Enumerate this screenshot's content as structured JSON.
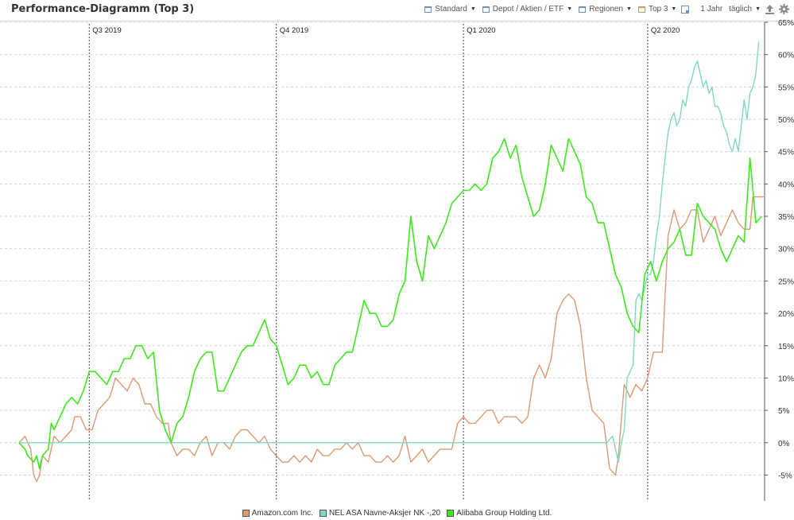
{
  "header": {
    "title": "Performance-Diagramm (Top 3)",
    "toolbar": {
      "standard": "Standard",
      "depot": "Depot / Aktien / ETF",
      "regionen": "Regionen",
      "top": "Top 3",
      "period": "1 Jahr",
      "interval": "täglich",
      "icons": [
        "dropdown-caret-icon",
        "export-upload-icon",
        "gear-icon"
      ]
    }
  },
  "colors": {
    "amazon": "#d99a74",
    "nel": "#7fd8c6",
    "alibaba": "#3ee81e",
    "grid": "#d0d0d0",
    "quarter_line": "#444444"
  },
  "chart_data": {
    "type": "line",
    "x_unit": "trading-day index over one year",
    "y_unit": "%",
    "ylim": [
      -9,
      65
    ],
    "yticks": [
      -5,
      0,
      5,
      10,
      15,
      20,
      25,
      30,
      35,
      40,
      45,
      50,
      55,
      60,
      65
    ],
    "grid": true,
    "legend_position": "bottom-center",
    "quarters": [
      {
        "label": "Q3 2019",
        "x": 24
      },
      {
        "label": "Q4 2019",
        "x": 88
      },
      {
        "label": "Q1 2020",
        "x": 152
      },
      {
        "label": "Q2 2020",
        "x": 215
      }
    ],
    "x_max": 255,
    "series": [
      {
        "name": "Amazon.com Inc.",
        "color_key": "amazon",
        "points": [
          [
            0,
            0
          ],
          [
            2,
            1
          ],
          [
            4,
            -1
          ],
          [
            5,
            -5
          ],
          [
            6,
            -6
          ],
          [
            7,
            -5
          ],
          [
            8,
            -2
          ],
          [
            10,
            -3
          ],
          [
            11,
            -1
          ],
          [
            12,
            1
          ],
          [
            14,
            0
          ],
          [
            16,
            1
          ],
          [
            18,
            2
          ],
          [
            19,
            4
          ],
          [
            21,
            4
          ],
          [
            22,
            3
          ],
          [
            23,
            2
          ],
          [
            25,
            2
          ],
          [
            27,
            5
          ],
          [
            29,
            6
          ],
          [
            31,
            7
          ],
          [
            33,
            10
          ],
          [
            35,
            9
          ],
          [
            37,
            8
          ],
          [
            39,
            10
          ],
          [
            41,
            9
          ],
          [
            43,
            6
          ],
          [
            45,
            6
          ],
          [
            47,
            4
          ],
          [
            49,
            3
          ],
          [
            51,
            3
          ],
          [
            52,
            0
          ],
          [
            54,
            -2
          ],
          [
            56,
            -1
          ],
          [
            58,
            -1
          ],
          [
            60,
            -2
          ],
          [
            62,
            0
          ],
          [
            64,
            1
          ],
          [
            66,
            -2
          ],
          [
            68,
            0
          ],
          [
            70,
            0
          ],
          [
            72,
            -1
          ],
          [
            74,
            1
          ],
          [
            76,
            2
          ],
          [
            78,
            2
          ],
          [
            80,
            1
          ],
          [
            82,
            0
          ],
          [
            84,
            1
          ],
          [
            86,
            -1
          ],
          [
            88,
            -2
          ],
          [
            90,
            -3
          ],
          [
            92,
            -3
          ],
          [
            94,
            -2
          ],
          [
            96,
            -3
          ],
          [
            98,
            -2
          ],
          [
            100,
            -3
          ],
          [
            102,
            -1
          ],
          [
            104,
            -2
          ],
          [
            106,
            -2
          ],
          [
            108,
            -1
          ],
          [
            110,
            -1
          ],
          [
            112,
            0
          ],
          [
            114,
            -1
          ],
          [
            116,
            0
          ],
          [
            118,
            -2
          ],
          [
            120,
            -2
          ],
          [
            122,
            -3
          ],
          [
            124,
            -3
          ],
          [
            126,
            -2
          ],
          [
            128,
            -3
          ],
          [
            130,
            -2
          ],
          [
            132,
            1
          ],
          [
            134,
            -3
          ],
          [
            136,
            -2
          ],
          [
            138,
            -1
          ],
          [
            140,
            -3
          ],
          [
            142,
            -2
          ],
          [
            144,
            -1
          ],
          [
            146,
            -1
          ],
          [
            148,
            -1
          ],
          [
            150,
            3
          ],
          [
            152,
            4
          ],
          [
            154,
            3
          ],
          [
            156,
            3
          ],
          [
            158,
            4
          ],
          [
            160,
            5
          ],
          [
            162,
            5
          ],
          [
            164,
            3
          ],
          [
            166,
            4
          ],
          [
            168,
            4
          ],
          [
            170,
            4
          ],
          [
            172,
            3
          ],
          [
            174,
            4
          ],
          [
            176,
            10
          ],
          [
            178,
            12
          ],
          [
            180,
            10
          ],
          [
            182,
            13
          ],
          [
            184,
            20
          ],
          [
            186,
            22
          ],
          [
            188,
            23
          ],
          [
            190,
            22
          ],
          [
            192,
            18
          ],
          [
            194,
            10
          ],
          [
            196,
            5
          ],
          [
            198,
            4
          ],
          [
            200,
            3
          ],
          [
            202,
            -4
          ],
          [
            204,
            -5
          ],
          [
            205,
            -2
          ],
          [
            207,
            9
          ],
          [
            209,
            7
          ],
          [
            211,
            9
          ],
          [
            213,
            8
          ],
          [
            215,
            10
          ],
          [
            217,
            14
          ],
          [
            219,
            14
          ],
          [
            220,
            14
          ],
          [
            222,
            32
          ],
          [
            224,
            36
          ],
          [
            226,
            33
          ],
          [
            228,
            34
          ],
          [
            230,
            36
          ],
          [
            232,
            36
          ],
          [
            234,
            31
          ],
          [
            236,
            33
          ],
          [
            238,
            35
          ],
          [
            240,
            32
          ],
          [
            242,
            34
          ],
          [
            244,
            36
          ],
          [
            246,
            34
          ],
          [
            248,
            33
          ],
          [
            250,
            33
          ],
          [
            251,
            38
          ],
          [
            253,
            38
          ],
          [
            255,
            38
          ]
        ]
      },
      {
        "name": "NEL ASA Navne-Aksjer NK -,20",
        "color_key": "nel",
        "points": [
          [
            0,
            0
          ],
          [
            100,
            0
          ],
          [
            201,
            0
          ],
          [
            203,
            1
          ],
          [
            204,
            -1
          ],
          [
            205,
            -3
          ],
          [
            206,
            0
          ],
          [
            207,
            2
          ],
          [
            208,
            10
          ],
          [
            209,
            11
          ],
          [
            210,
            12
          ],
          [
            211,
            22
          ],
          [
            212,
            23
          ],
          [
            213,
            22
          ],
          [
            214,
            24
          ],
          [
            215,
            26
          ],
          [
            216,
            26
          ],
          [
            217,
            28
          ],
          [
            218,
            32
          ],
          [
            219,
            35
          ],
          [
            220,
            40
          ],
          [
            221,
            44
          ],
          [
            222,
            48
          ],
          [
            223,
            50
          ],
          [
            224,
            51
          ],
          [
            225,
            49
          ],
          [
            226,
            50
          ],
          [
            227,
            53
          ],
          [
            228,
            52
          ],
          [
            229,
            55
          ],
          [
            230,
            56
          ],
          [
            231,
            58
          ],
          [
            232,
            59
          ],
          [
            233,
            57
          ],
          [
            234,
            55
          ],
          [
            235,
            56
          ],
          [
            236,
            54
          ],
          [
            237,
            55
          ],
          [
            238,
            52
          ],
          [
            239,
            52
          ],
          [
            240,
            51
          ],
          [
            241,
            49
          ],
          [
            242,
            48
          ],
          [
            243,
            46
          ],
          [
            244,
            45
          ],
          [
            245,
            47
          ],
          [
            246,
            45
          ],
          [
            247,
            49
          ],
          [
            248,
            53
          ],
          [
            249,
            50
          ],
          [
            250,
            54
          ],
          [
            251,
            55
          ],
          [
            252,
            57
          ],
          [
            253,
            62
          ]
        ]
      },
      {
        "name": "Alibaba Group Holding Ltd.",
        "color_key": "alibaba",
        "points": [
          [
            0,
            0
          ],
          [
            2,
            -1
          ],
          [
            3,
            -2
          ],
          [
            5,
            -3
          ],
          [
            6,
            -2
          ],
          [
            7,
            -4
          ],
          [
            8,
            -2
          ],
          [
            10,
            -1
          ],
          [
            11,
            3
          ],
          [
            12,
            2
          ],
          [
            14,
            4
          ],
          [
            16,
            6
          ],
          [
            18,
            7
          ],
          [
            20,
            6
          ],
          [
            22,
            8
          ],
          [
            24,
            11
          ],
          [
            26,
            11
          ],
          [
            28,
            10
          ],
          [
            30,
            9
          ],
          [
            32,
            11
          ],
          [
            34,
            11
          ],
          [
            36,
            13
          ],
          [
            38,
            13
          ],
          [
            40,
            15
          ],
          [
            42,
            15
          ],
          [
            44,
            13
          ],
          [
            46,
            14
          ],
          [
            48,
            5
          ],
          [
            50,
            2
          ],
          [
            52,
            0
          ],
          [
            54,
            3
          ],
          [
            56,
            4
          ],
          [
            58,
            7
          ],
          [
            60,
            11
          ],
          [
            62,
            13
          ],
          [
            64,
            14
          ],
          [
            66,
            14
          ],
          [
            68,
            8
          ],
          [
            70,
            8
          ],
          [
            72,
            10
          ],
          [
            74,
            12
          ],
          [
            76,
            14
          ],
          [
            78,
            15
          ],
          [
            80,
            15
          ],
          [
            82,
            17
          ],
          [
            84,
            19
          ],
          [
            86,
            16
          ],
          [
            88,
            15
          ],
          [
            90,
            12
          ],
          [
            92,
            9
          ],
          [
            94,
            10
          ],
          [
            96,
            12
          ],
          [
            98,
            12
          ],
          [
            100,
            10
          ],
          [
            102,
            11
          ],
          [
            104,
            9
          ],
          [
            106,
            9
          ],
          [
            108,
            12
          ],
          [
            110,
            13
          ],
          [
            112,
            14
          ],
          [
            114,
            14
          ],
          [
            116,
            18
          ],
          [
            118,
            22
          ],
          [
            120,
            20
          ],
          [
            122,
            20
          ],
          [
            124,
            18
          ],
          [
            126,
            18
          ],
          [
            128,
            19
          ],
          [
            130,
            23
          ],
          [
            132,
            25
          ],
          [
            134,
            35
          ],
          [
            136,
            28
          ],
          [
            138,
            25
          ],
          [
            140,
            32
          ],
          [
            142,
            30
          ],
          [
            144,
            32
          ],
          [
            146,
            34
          ],
          [
            148,
            37
          ],
          [
            150,
            38
          ],
          [
            152,
            39
          ],
          [
            154,
            39
          ],
          [
            156,
            40
          ],
          [
            158,
            39
          ],
          [
            160,
            40
          ],
          [
            162,
            44
          ],
          [
            164,
            45
          ],
          [
            166,
            47
          ],
          [
            168,
            44
          ],
          [
            170,
            46
          ],
          [
            172,
            41
          ],
          [
            174,
            38
          ],
          [
            176,
            35
          ],
          [
            178,
            36
          ],
          [
            180,
            40
          ],
          [
            182,
            46
          ],
          [
            184,
            44
          ],
          [
            186,
            42
          ],
          [
            188,
            47
          ],
          [
            190,
            45
          ],
          [
            192,
            43
          ],
          [
            194,
            38
          ],
          [
            196,
            37
          ],
          [
            198,
            34
          ],
          [
            200,
            34
          ],
          [
            202,
            30
          ],
          [
            204,
            26
          ],
          [
            206,
            24
          ],
          [
            208,
            20
          ],
          [
            210,
            18
          ],
          [
            212,
            17
          ],
          [
            214,
            26
          ],
          [
            216,
            28
          ],
          [
            218,
            25
          ],
          [
            220,
            28
          ],
          [
            222,
            30
          ],
          [
            224,
            31
          ],
          [
            226,
            33
          ],
          [
            228,
            29
          ],
          [
            230,
            29
          ],
          [
            232,
            37
          ],
          [
            234,
            35
          ],
          [
            236,
            34
          ],
          [
            238,
            33
          ],
          [
            240,
            30
          ],
          [
            242,
            28
          ],
          [
            244,
            30
          ],
          [
            246,
            32
          ],
          [
            248,
            31
          ],
          [
            250,
            44
          ],
          [
            252,
            34
          ],
          [
            254,
            35
          ]
        ]
      }
    ]
  }
}
